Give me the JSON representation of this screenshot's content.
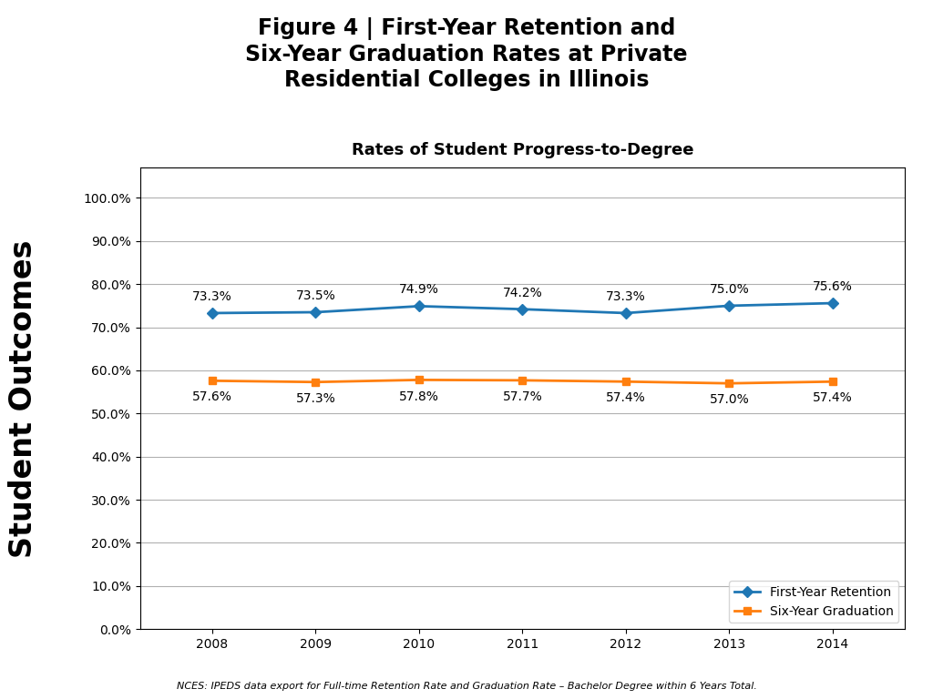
{
  "chart_data": {
    "type": "line",
    "title": "Figure 4 | First-Year Retention and\nSix-Year Graduation Rates at Private\nResidential Colleges in Illinois",
    "subtitle": "Rates of Student Progress-to-Degree",
    "annotations": [
      "Student Outcomes",
      "NCES: IPEDS data export for Full-time Retention Rate and Graduation Rate – Bachelor Degree within 6 Years Total."
    ],
    "x": [
      2008,
      2009,
      2010,
      2011,
      2012,
      2013,
      2014
    ],
    "series": [
      {
        "name": "First-Year Retention",
        "marker": "diamond",
        "values": [
          73.3,
          73.5,
          74.9,
          74.2,
          73.3,
          75.0,
          75.6
        ],
        "value_labels": [
          "73.3%",
          "73.5%",
          "74.9%",
          "74.2%",
          "73.3%",
          "75.0%",
          "75.6%"
        ]
      },
      {
        "name": "Six-Year Graduation",
        "marker": "square",
        "values": [
          57.6,
          57.3,
          57.8,
          57.7,
          57.4,
          57.0,
          57.4
        ],
        "value_labels": [
          "57.6%",
          "57.3%",
          "57.8%",
          "57.7%",
          "57.4%",
          "57.0%",
          "57.4%"
        ]
      }
    ],
    "xlim": [
      2007.3,
      2014.7
    ],
    "xticks": [
      2008,
      2009,
      2010,
      2011,
      2012,
      2013,
      2014
    ],
    "ylim": [
      0,
      107
    ],
    "yticks": [
      {
        "value": 0,
        "label": "0.0%"
      },
      {
        "value": 10,
        "label": "10.0%"
      },
      {
        "value": 20,
        "label": "20.0%"
      },
      {
        "value": 30,
        "label": "30.0%"
      },
      {
        "value": 40,
        "label": "40.0%"
      },
      {
        "value": 50,
        "label": "50.0%"
      },
      {
        "value": 60,
        "label": "60.0%"
      },
      {
        "value": 70,
        "label": "70.0%"
      },
      {
        "value": 80,
        "label": "80.0%"
      },
      {
        "value": 90,
        "label": "90.0%"
      },
      {
        "value": 100,
        "label": "100.0%"
      }
    ],
    "grid": "y",
    "legend": "lower right",
    "data_labels": true
  }
}
